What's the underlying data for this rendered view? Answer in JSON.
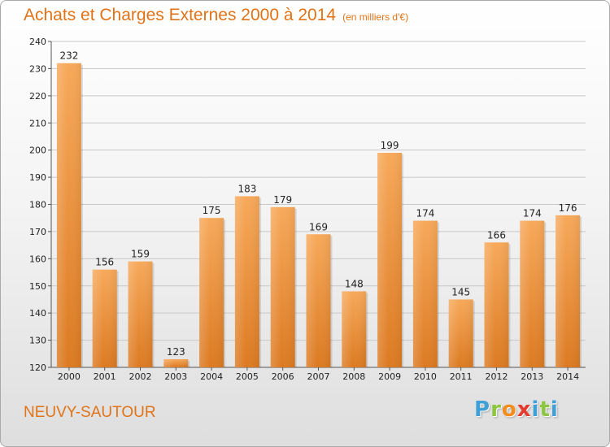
{
  "header": {
    "title": "Achats et Charges Externes 2000 à 2014",
    "unit": "(en milliers d'€)"
  },
  "city": "NEUVY-SAUTOUR",
  "logo": {
    "letters": [
      "P",
      "r",
      "o",
      "x",
      "i",
      "t",
      "i"
    ],
    "colors": [
      "#3fa0d8",
      "#8cc63e",
      "#f28c1b",
      "#e63a2e",
      "#3fa0d8",
      "#8cc63e",
      "#3fa0d8"
    ]
  },
  "colors": {
    "accent": "#e07318",
    "bar_light": "#f7a95a",
    "bar_dark": "#dc7a22",
    "grid": "#c8c8c8"
  },
  "chart_data": {
    "type": "bar",
    "title": "Achats et Charges Externes 2000 à 2014",
    "subtitle": "(en milliers d'€)",
    "categories": [
      "2000",
      "2001",
      "2002",
      "2003",
      "2004",
      "2005",
      "2006",
      "2007",
      "2008",
      "2009",
      "2010",
      "2011",
      "2012",
      "2013",
      "2014"
    ],
    "values": [
      232,
      156,
      159,
      123,
      175,
      183,
      179,
      169,
      148,
      199,
      174,
      145,
      166,
      174,
      176
    ],
    "yticks": [
      120,
      130,
      140,
      150,
      160,
      170,
      180,
      190,
      200,
      210,
      220,
      230,
      240
    ],
    "ylim": [
      120,
      240
    ],
    "grid": true,
    "xlabel": "",
    "ylabel": ""
  }
}
